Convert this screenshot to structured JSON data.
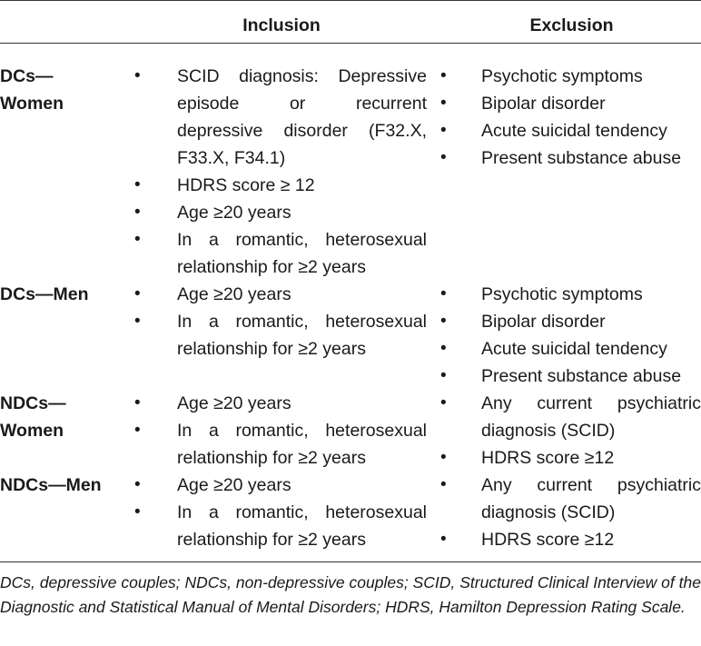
{
  "columns": {
    "inclusion": "Inclusion",
    "exclusion": "Exclusion"
  },
  "groups": [
    {
      "label_lines": [
        "DCs—",
        "Women"
      ],
      "inclusion": [
        [
          "SCID diagnosis: Depressive",
          "episode or recurrent",
          "depressive disorder (F32.X,",
          "F33.X, F34.1)"
        ],
        [
          "HDRS score ≥ 12"
        ],
        [
          "Age ≥20 years"
        ],
        [
          "In a romantic, heterosexual",
          "relationship for ≥2 years"
        ]
      ],
      "exclusion": [
        [
          "Psychotic symptoms"
        ],
        [
          "Bipolar disorder"
        ],
        [
          "Acute suicidal tendency"
        ],
        [
          "Present substance abuse"
        ]
      ]
    },
    {
      "label_lines": [
        "DCs—Men"
      ],
      "inclusion": [
        [
          "Age ≥20 years"
        ],
        [
          "In a romantic, heterosexual",
          "relationship for ≥2 years"
        ]
      ],
      "exclusion": [
        [
          "Psychotic symptoms"
        ],
        [
          "Bipolar disorder"
        ],
        [
          "Acute suicidal tendency"
        ],
        [
          "Present substance abuse"
        ]
      ]
    },
    {
      "label_lines": [
        "NDCs—",
        "Women"
      ],
      "inclusion": [
        [
          "Age ≥20 years"
        ],
        [
          "In a romantic, heterosexual",
          "relationship for ≥2 years"
        ]
      ],
      "exclusion": [
        [
          "Any current psychiatric",
          "diagnosis (SCID)"
        ],
        [
          "HDRS score ≥12"
        ]
      ]
    },
    {
      "label_lines": [
        "NDCs—Men"
      ],
      "inclusion": [
        [
          "Age ≥20 years"
        ],
        [
          "In a romantic, heterosexual",
          "relationship for ≥2 years"
        ]
      ],
      "exclusion": [
        [
          "Any current psychiatric",
          "diagnosis (SCID)"
        ],
        [
          "HDRS score ≥12"
        ]
      ]
    }
  ],
  "bullet": "•",
  "footnote_lines": [
    "DCs, depressive couples; NDCs, non-depressive couples; SCID, Structured Clinical",
    "Interview of the Diagnostic and Statistical Manual of Mental Disorders; HDRS, Hamilton",
    "Depression Rating Scale."
  ]
}
